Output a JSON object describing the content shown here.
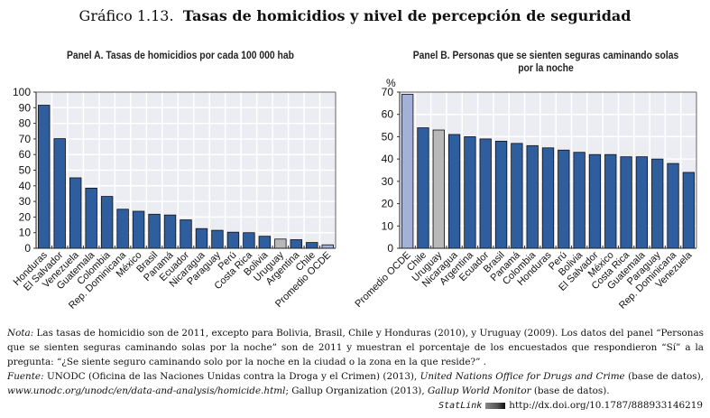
{
  "figure": {
    "number": "Gráfico 1.13.",
    "title": "Tasas de homicidios y nivel de percepción de seguridad"
  },
  "colors": {
    "bar_main": "#2e5e9e",
    "bar_ocde": "#a3b0d8",
    "bar_highlight": "#b8b8b8",
    "plot_bg": "#ececf3",
    "grid": "#ffffff"
  },
  "chart_data": [
    {
      "type": "bar",
      "title": "Panel A. Tasas de homicidios por cada 100 000 hab",
      "ylabel": "",
      "ylim": [
        0,
        100
      ],
      "yticks": [
        0,
        10,
        20,
        30,
        40,
        50,
        60,
        70,
        80,
        90,
        100
      ],
      "grid": true,
      "categories": [
        "Honduras",
        "El Salvador",
        "Venezuela",
        "Guatemala",
        "Colombia",
        "Rep. Dominicana",
        "México",
        "Brasil",
        "Panamá",
        "Ecuador",
        "Nicaragua",
        "Paraguay",
        "Perú",
        "Costa Rica",
        "Bolivia",
        "Uruguay",
        "Argentina",
        "Chile",
        "Promedio OCDE"
      ],
      "values": [
        91.6,
        70.2,
        45.1,
        38.5,
        33.2,
        25.0,
        23.7,
        21.8,
        21.3,
        18.2,
        12.6,
        11.5,
        10.3,
        10.0,
        7.7,
        5.9,
        5.5,
        3.7,
        2.2
      ],
      "highlight": {
        "Uruguay": "bar_highlight",
        "Promedio OCDE": "bar_ocde"
      }
    },
    {
      "type": "bar",
      "title": "Panel B. Personas que se sienten seguras caminando solas por la noche",
      "title_lines": [
        "Panel B. Personas que se sienten seguras caminando solas",
        "por la noche"
      ],
      "ylabel": "%",
      "ylim": [
        0,
        70
      ],
      "yticks": [
        0,
        10,
        20,
        30,
        40,
        50,
        60,
        70
      ],
      "grid": true,
      "categories": [
        "Promedio OCDE",
        "Chile",
        "Uruguay",
        "Nicaragua",
        "Argentina",
        "Ecuador",
        "Brasil",
        "Panamá",
        "Colombia",
        "Honduras",
        "Perú",
        "Bolivia",
        "El Salvador",
        "México",
        "Costa Rica",
        "Guatemala",
        "Paraguay",
        "Rep. Dominicana",
        "Venezuela"
      ],
      "values": [
        69,
        54,
        53,
        51,
        50,
        49,
        48,
        47,
        46,
        45,
        44,
        43,
        42,
        42,
        41,
        41,
        40,
        38,
        34
      ],
      "highlight": {
        "Uruguay": "bar_highlight",
        "Promedio OCDE": "bar_ocde"
      }
    }
  ],
  "notes": {
    "nota_label": "Nota:",
    "nota_text": " Las tasas de homicidio son de 2011, excepto para Bolivia, Brasil, Chile y Honduras (2010), y Uruguay (2009). Los datos del panel “Personas que se sienten seguras caminando solas por la noche” son de 2011 y muestran el porcentaje de los encuestados que respondieron “Sí” a la pregunta: “¿Se siente seguro caminando solo por la noche en la ciudad o la zona en la que reside?” .",
    "fuente_label": "Fuente:",
    "fuente_text1": " UNODC (Oficina de las Naciones Unidas contra la Droga y el Crimen) (2013), ",
    "fuente_italic1": "United Nations Office for Drugs and Crime",
    "fuente_text2": " (base de datos), ",
    "fuente_italic2": "www.unodc.org/unodc/en/data-and-analysis/homicide.html",
    "fuente_text3": "; Gallup Organization (2013), ",
    "fuente_italic3": "Gallup World Monitor",
    "fuente_text4": " (base de datos)."
  },
  "statlink": {
    "label": "StatLink",
    "url": "http://dx.doi.org/10.1787/888933146219"
  }
}
